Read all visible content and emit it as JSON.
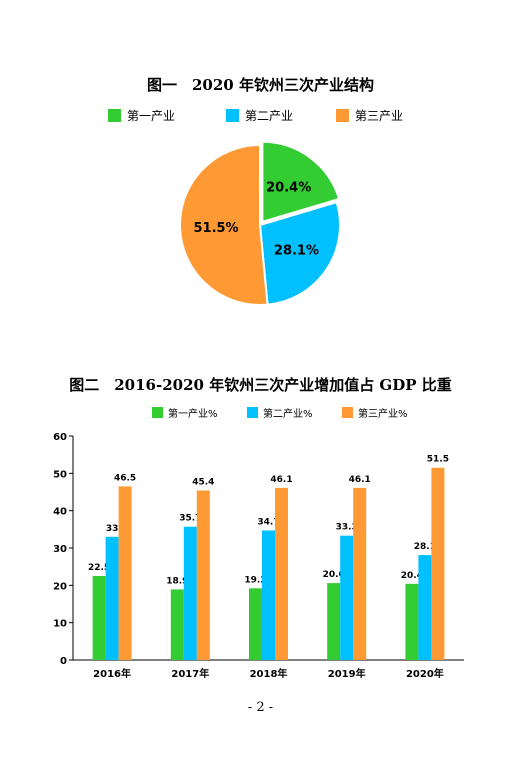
{
  "page_number": "- 2 -",
  "colors": {
    "primary": "#33cc33",
    "secondary": "#00c0ff",
    "tertiary": "#ff9933"
  },
  "chart_data": [
    {
      "type": "pie",
      "title": "图一　2020 年钦州三次产业结构",
      "legend": [
        "第一产业",
        "第二产业",
        "第三产业"
      ],
      "legend_position": "top",
      "values": [
        20.4,
        28.1,
        51.5
      ],
      "value_labels": [
        "20.4%",
        "28.1%",
        "51.5%"
      ],
      "start_angle": "12 o'clock, clockwise"
    },
    {
      "type": "bar",
      "title": "图二　2016-2020 年钦州三次产业增加值占 GDP 比重",
      "legend_position": "top",
      "categories": [
        "2016年",
        "2017年",
        "2018年",
        "2019年",
        "2020年"
      ],
      "series": [
        {
          "name": "第一产业%",
          "values": [
            22.5,
            18.9,
            19.2,
            20.6,
            20.4
          ]
        },
        {
          "name": "第二产业%",
          "values": [
            33,
            35.7,
            34.7,
            33.3,
            28.1
          ]
        },
        {
          "name": "第三产业%",
          "values": [
            46.5,
            45.4,
            46.1,
            46.1,
            51.5
          ]
        }
      ],
      "y_ticks": [
        "0",
        "10",
        "20",
        "30",
        "40",
        "50",
        "60"
      ],
      "ylim": [
        0,
        60
      ],
      "grid": false
    }
  ]
}
